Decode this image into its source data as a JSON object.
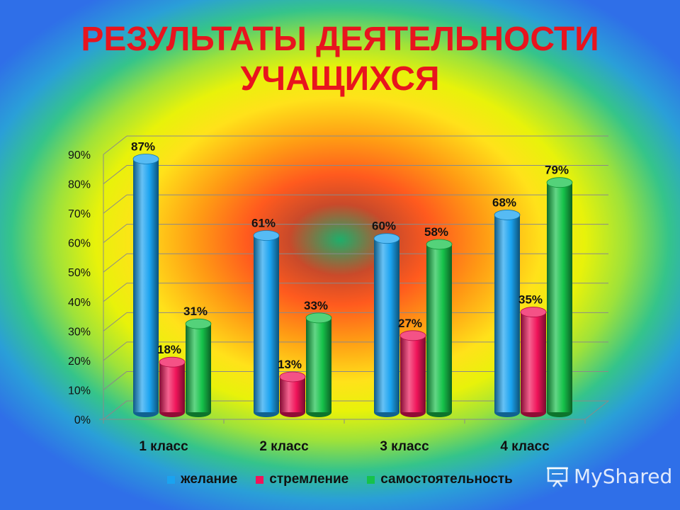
{
  "title": {
    "line1": "РЕЗУЛЬТАТЫ ДЕЯТЕЛЬНОСТИ",
    "line2": "УЧАЩИХСЯ"
  },
  "chart_data": {
    "type": "bar",
    "categories": [
      "1 класс",
      "2 класс",
      "3 класс",
      "4 класс"
    ],
    "series": [
      {
        "name": "желание",
        "values": [
          87,
          61,
          60,
          68
        ],
        "color": "#1aa3f0"
      },
      {
        "name": "стремление",
        "values": [
          18,
          13,
          27,
          35
        ],
        "color": "#f0145a"
      },
      {
        "name": "самостоятельность",
        "values": [
          31,
          33,
          58,
          79
        ],
        "color": "#16c24a"
      }
    ],
    "data_labels": [
      [
        "87%",
        "61%",
        "60%",
        "68%"
      ],
      [
        "18%",
        "13%",
        "27%",
        "35%"
      ],
      [
        "31%",
        "33%",
        "58%",
        "79%"
      ]
    ],
    "y_ticks": [
      "0%",
      "10%",
      "20%",
      "30%",
      "40%",
      "50%",
      "60%",
      "70%",
      "80%",
      "90%"
    ],
    "ylim": [
      0,
      90
    ],
    "grid": true,
    "legend_position": "bottom",
    "style": "3d-cylinder"
  },
  "watermark": {
    "text": "MyShared",
    "icon": "presentation-board-icon"
  }
}
